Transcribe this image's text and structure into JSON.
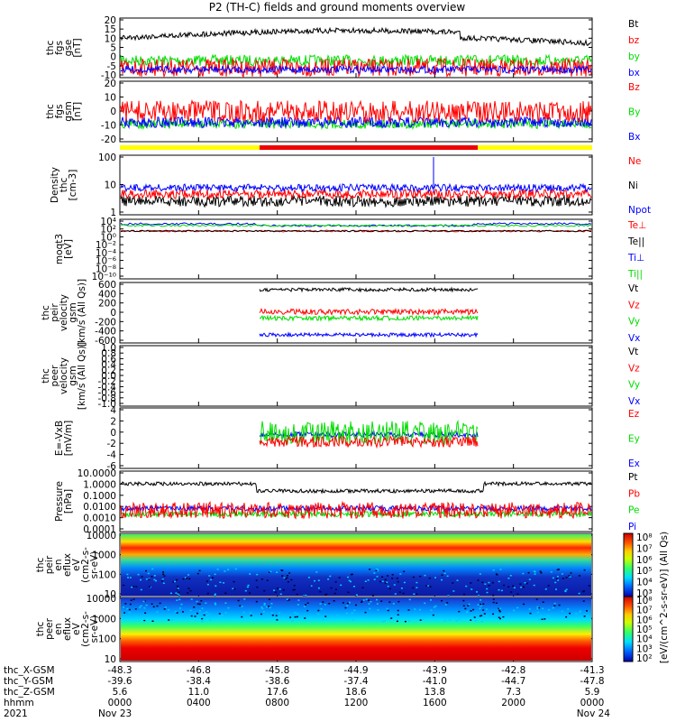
{
  "title": "P2 (TH-C) fields and ground moments overview",
  "colors": {
    "black": "#000000",
    "red": "#ff0000",
    "green": "#00dd00",
    "blue": "#0000ff",
    "yellow": "#ffff00",
    "lime": "#33ff33"
  },
  "panels": [
    {
      "id": "fgs-gse",
      "ylabel_lines": [
        "thc",
        "fgs",
        "gse",
        "[nT]"
      ],
      "ticks": [
        "20",
        "15",
        "10",
        "5",
        "0",
        "-5",
        "-10"
      ],
      "legend": [
        {
          "label": "Bt",
          "color": "#000000"
        },
        {
          "label": "bz",
          "color": "#ff0000"
        },
        {
          "label": "by",
          "color": "#00dd00"
        },
        {
          "label": "bx",
          "color": "#0000ff"
        }
      ]
    },
    {
      "id": "fgs-gsm",
      "ylabel_lines": [
        "thc",
        "fgs",
        "gsm",
        "[nT]"
      ],
      "ticks": [
        "20",
        "10",
        "0",
        "-10",
        "-20"
      ],
      "legend": [
        {
          "label": "Bz",
          "color": "#ff0000"
        },
        {
          "label": "By",
          "color": "#00dd00"
        },
        {
          "label": "Bx",
          "color": "#0000ff"
        }
      ]
    },
    {
      "id": "density",
      "ylabel_lines": [
        "Density",
        "thc",
        "[cm-3]"
      ],
      "ticks": [
        "100",
        "10",
        "1"
      ],
      "legend": [
        {
          "label": "Ne",
          "color": "#ff0000"
        },
        {
          "label": "Ni",
          "color": "#000000"
        },
        {
          "label": "Npot",
          "color": "#0000ff"
        }
      ]
    },
    {
      "id": "temperature",
      "ylabel_lines": [
        "moqt3",
        "[eV]"
      ],
      "ticks": [
        "10⁴",
        "10²",
        "10⁰",
        "10⁻²",
        "10⁻⁴",
        "10⁻⁶",
        "10⁻⁸",
        "10⁻¹⁰"
      ],
      "legend": [
        {
          "label": "Te⊥",
          "color": "#ff0000"
        },
        {
          "label": "Te||",
          "color": "#000000"
        },
        {
          "label": "Ti⊥",
          "color": "#0000ff"
        },
        {
          "label": "Ti||",
          "color": "#00dd00"
        }
      ]
    },
    {
      "id": "peir-velocity",
      "ylabel_lines": [
        "thc",
        "peir",
        "velocity",
        "gsm",
        "[km/s (All Qs)]"
      ],
      "ticks": [
        "600",
        "400",
        "200",
        "0",
        "-200",
        "-400",
        "-600"
      ],
      "legend": [
        {
          "label": "Vt",
          "color": "#000000"
        },
        {
          "label": "Vz",
          "color": "#ff0000"
        },
        {
          "label": "Vy",
          "color": "#00dd00"
        },
        {
          "label": "Vx",
          "color": "#0000ff"
        }
      ]
    },
    {
      "id": "peer-velocity",
      "ylabel_lines": [
        "thc",
        "peer",
        "velocity",
        "gsm",
        "[km/s (All Qs)]"
      ],
      "ticks": [
        "1.0",
        "0.8",
        "0.6",
        "0.4",
        "0.2",
        "0.0",
        "-0.2",
        "-0.4",
        "-0.6",
        "-0.8",
        "-1.0"
      ],
      "legend": [
        {
          "label": "Vt",
          "color": "#000000"
        },
        {
          "label": "Vz",
          "color": "#ff0000"
        },
        {
          "label": "Vy",
          "color": "#00dd00"
        },
        {
          "label": "Vx",
          "color": "#0000ff"
        }
      ]
    },
    {
      "id": "efield",
      "ylabel_lines": [
        "E=-VxB",
        "[mV/m]"
      ],
      "ticks": [
        "4",
        "2",
        "0",
        "-2",
        "-4",
        "-6"
      ],
      "legend": [
        {
          "label": "Ez",
          "color": "#ff0000"
        },
        {
          "label": "Ey",
          "color": "#00dd00"
        },
        {
          "label": "Ex",
          "color": "#0000ff"
        }
      ]
    },
    {
      "id": "pressure",
      "ylabel_lines": [
        "Pressure",
        "[nPa]"
      ],
      "ticks": [
        "10.0000",
        "1.0000",
        "0.1000",
        "0.0100",
        "0.0010",
        "0.0001"
      ],
      "legend": [
        {
          "label": "Pt",
          "color": "#000000"
        },
        {
          "label": "Pb",
          "color": "#ff0000"
        },
        {
          "label": "Pe",
          "color": "#00dd00"
        },
        {
          "label": "Pi",
          "color": "#0000ff"
        }
      ]
    },
    {
      "id": "peir-spec",
      "ylabel_lines": [
        "thc",
        "peir",
        "en",
        "eflux",
        "eV",
        "(cm2-s-",
        "sr-eV)"
      ],
      "ticks": [
        "10000",
        "1000",
        "100",
        "10"
      ]
    },
    {
      "id": "peer-spec",
      "ylabel_lines": [
        "thc",
        "peer",
        "en",
        "eflux",
        "eV",
        "(cm2-s-",
        "sr-eV)"
      ],
      "ticks": [
        "10000",
        "1000",
        "100",
        "10"
      ]
    }
  ],
  "colorbar": {
    "label": "[eV/(cm^2-s-sr-eV)] (All Qs)",
    "upper_ticks": [
      "10⁸",
      "10⁷",
      "10⁶",
      "10⁵",
      "10⁴",
      "10³"
    ],
    "lower_ticks": [
      "10⁸",
      "10⁷",
      "10⁶",
      "10⁵",
      "10⁴",
      "10³",
      "10²"
    ]
  },
  "ephemeris": {
    "rows": [
      {
        "label": "thc_X-GSM",
        "values": [
          "-48.3",
          "-46.8",
          "-45.8",
          "-44.9",
          "-43.9",
          "-42.8",
          "-41.3"
        ]
      },
      {
        "label": "thc_Y-GSM",
        "values": [
          "-39.6",
          "-38.4",
          "-38.6",
          "-37.4",
          "-41.0",
          "-44.7",
          "-47.8"
        ]
      },
      {
        "label": "thc_Z-GSM",
        "values": [
          "5.6",
          "11.0",
          "17.6",
          "18.6",
          "13.8",
          "7.3",
          "5.9"
        ]
      },
      {
        "label": "hhmm",
        "values": [
          "0000",
          "0400",
          "0800",
          "1200",
          "1600",
          "2000",
          "0000"
        ]
      },
      {
        "label": "2021",
        "values": [
          "Nov 23",
          "",
          "",
          "",
          "",
          "",
          "Nov 24"
        ]
      }
    ]
  },
  "chart_data": {
    "type": "line",
    "title": "P2 (TH-C) fields and ground moments overview",
    "x_ticks": [
      "0000",
      "0400",
      "0800",
      "1200",
      "1600",
      "2000",
      "0000"
    ],
    "xlim": [
      "2021-11-23 00:00",
      "2021-11-24 00:00"
    ],
    "panels": [
      {
        "name": "thc fgs gse [nT]",
        "ylim": [
          -12,
          20
        ],
        "series": [
          {
            "name": "Bt",
            "approx_level": 10
          },
          {
            "name": "bz",
            "approx_level": 0
          },
          {
            "name": "by",
            "approx_level": 3
          },
          {
            "name": "bx",
            "approx_level": -3
          }
        ]
      },
      {
        "name": "thc fgs gsm [nT]",
        "ylim": [
          -25,
          20
        ],
        "series": [
          {
            "name": "Bz",
            "approx_level": 2
          },
          {
            "name": "By",
            "approx_level": -3
          },
          {
            "name": "Bx",
            "approx_level": -5
          }
        ]
      },
      {
        "name": "Density thc [cm-3]",
        "scale": "log",
        "ylim": [
          1,
          200
        ],
        "series": [
          {
            "name": "Ne",
            "approx_level": 5
          },
          {
            "name": "Ni",
            "approx_level": 3
          },
          {
            "name": "Npot",
            "approx_level": 7
          }
        ]
      },
      {
        "name": "moqt3 [eV]",
        "scale": "log",
        "ylim": [
          1e-10,
          100000.0
        ],
        "series": [
          {
            "name": "Te⊥",
            "approx_level": 300
          },
          {
            "name": "Te||",
            "approx_level": 300
          },
          {
            "name": "Ti⊥",
            "approx_level": 3000
          },
          {
            "name": "Ti||",
            "approx_level": 1000
          }
        ]
      },
      {
        "name": "thc peir velocity gsm",
        "ylim": [
          -600,
          600
        ],
        "x_range": [
          "0600",
          "1700"
        ],
        "series": [
          {
            "name": "Vt",
            "approx_level": 450
          },
          {
            "name": "Vz",
            "approx_level": 20
          },
          {
            "name": "Vy",
            "approx_level": -80
          },
          {
            "name": "Vx",
            "approx_level": -430
          }
        ]
      },
      {
        "name": "thc peer velocity gsm",
        "ylim": [
          -1,
          1
        ],
        "series": []
      },
      {
        "name": "E=-VxB [mV/m]",
        "ylim": [
          -7,
          5
        ],
        "x_range": [
          "0600",
          "1700"
        ],
        "series": [
          {
            "name": "Ez",
            "approx_level": 0
          },
          {
            "name": "Ey",
            "approx_level": 2
          },
          {
            "name": "Ex",
            "approx_level": -0.5
          }
        ]
      },
      {
        "name": "Pressure [nPa]",
        "scale": "log",
        "ylim": [
          0.0001,
          10
        ],
        "series": [
          {
            "name": "Pt",
            "approx_level": 0.4
          },
          {
            "name": "Pb",
            "approx_level": 0.05
          },
          {
            "name": "Pe",
            "approx_level": 0.02
          },
          {
            "name": "Pi",
            "approx_level": 0.07
          }
        ]
      }
    ]
  }
}
